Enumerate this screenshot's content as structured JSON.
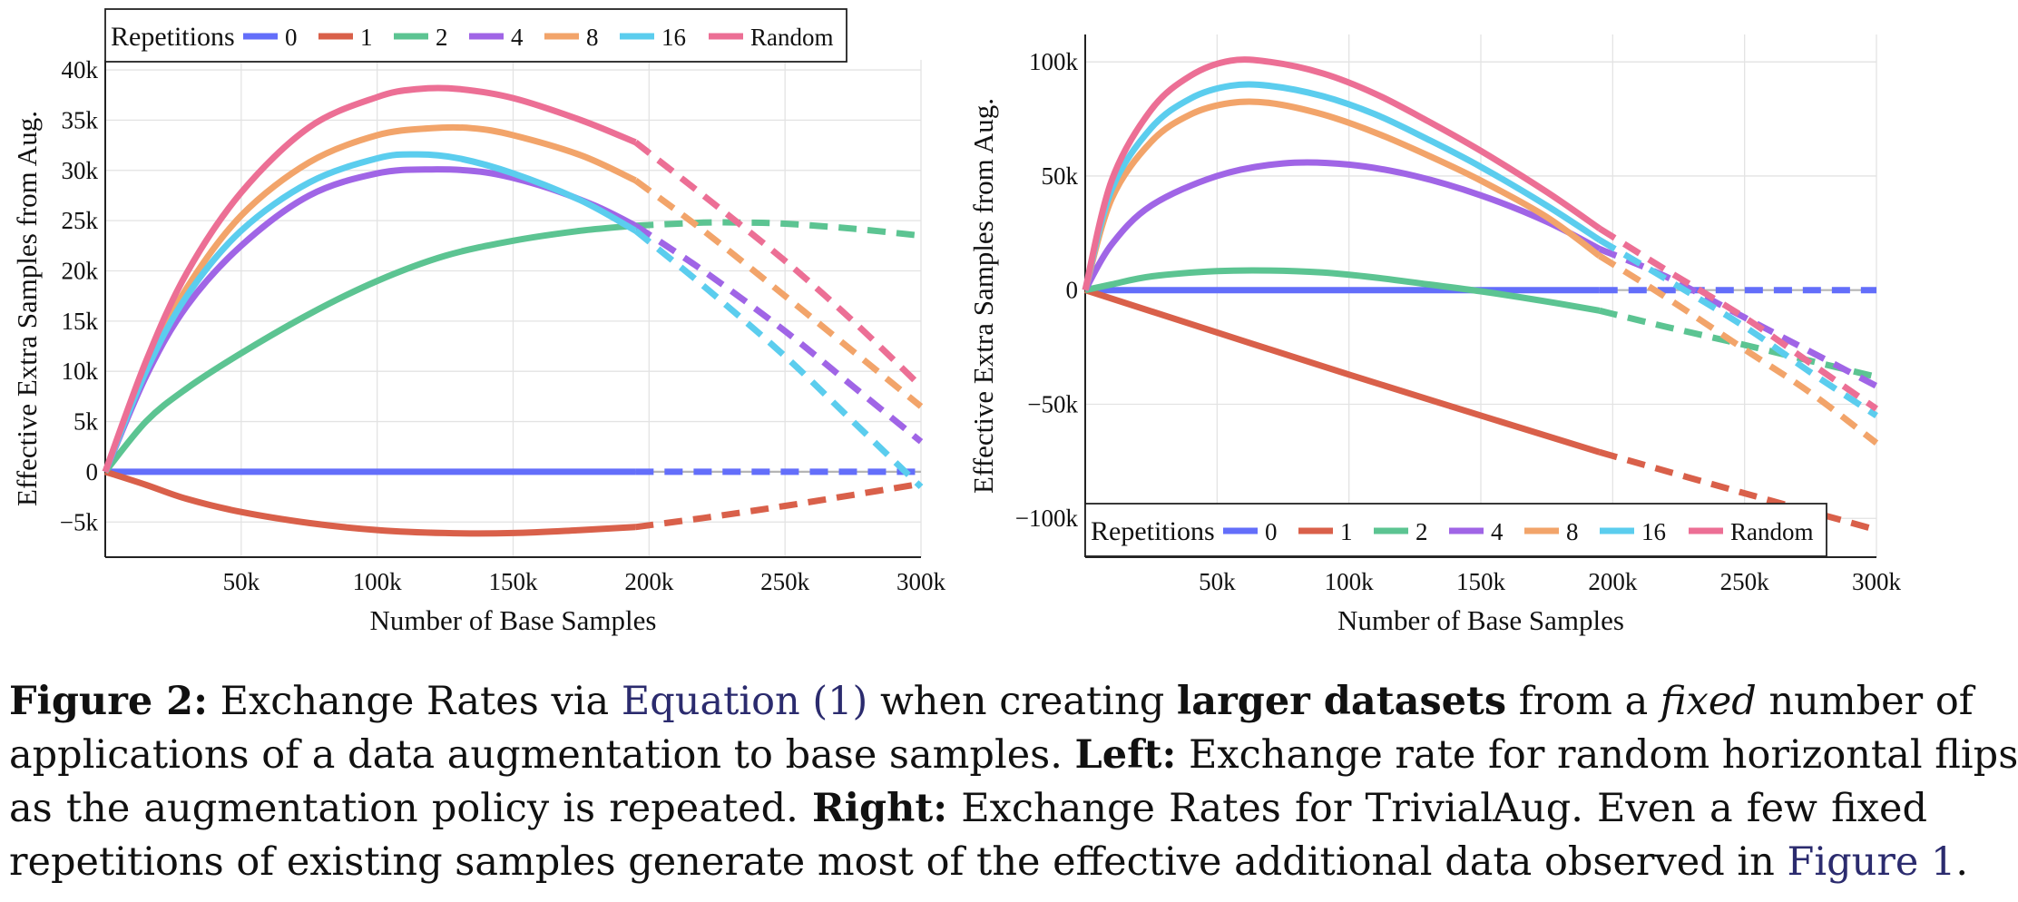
{
  "chart_data": [
    {
      "type": "line",
      "panel": "left",
      "xlabel": "Number of Base Samples",
      "ylabel": "Effective Extra Samples from Aug.",
      "xlim": [
        0,
        300000
      ],
      "ylim": [
        -8500,
        41000
      ],
      "xticks": [
        50000,
        100000,
        150000,
        200000,
        250000,
        300000
      ],
      "xtick_labels": [
        "50k",
        "100k",
        "150k",
        "200k",
        "250k",
        "300k"
      ],
      "yticks": [
        -5000,
        0,
        5000,
        10000,
        15000,
        20000,
        25000,
        30000,
        35000,
        40000
      ],
      "ytick_labels": [
        "−5k",
        "0",
        "5k",
        "10k",
        "15k",
        "20k",
        "25k",
        "30k",
        "35k",
        "40k"
      ],
      "grid": true,
      "solid_until_x": 195000,
      "legend": {
        "title": "Repetitions",
        "placement": "top-left"
      },
      "series": [
        {
          "name": "0",
          "color": "#636efa",
          "x": [
            0,
            100000,
            195000,
            300000
          ],
          "y": [
            0,
            0,
            0,
            0
          ]
        },
        {
          "name": "1",
          "color": "#d9604a",
          "x": [
            0,
            15000,
            30000,
            50000,
            75000,
            100000,
            125000,
            150000,
            175000,
            195000,
            220000,
            250000,
            275000,
            300000
          ],
          "y": [
            0,
            -1300,
            -2700,
            -4000,
            -5100,
            -5800,
            -6100,
            -6100,
            -5800,
            -5500,
            -4600,
            -3400,
            -2300,
            -1200
          ]
        },
        {
          "name": "2",
          "color": "#5cc492",
          "x": [
            0,
            15000,
            30000,
            50000,
            75000,
            100000,
            125000,
            150000,
            175000,
            195000,
            220000,
            235000,
            250000,
            275000,
            300000
          ],
          "y": [
            0,
            5000,
            8300,
            11800,
            15700,
            19000,
            21500,
            23000,
            24000,
            24500,
            24800,
            24800,
            24700,
            24200,
            23500
          ]
        },
        {
          "name": "4",
          "color": "#a065e6",
          "x": [
            0,
            15000,
            30000,
            50000,
            75000,
            100000,
            120000,
            140000,
            160000,
            180000,
            195000,
            220000,
            250000,
            275000,
            300000
          ],
          "y": [
            0,
            9500,
            16500,
            22500,
            27500,
            29700,
            30100,
            29800,
            28500,
            26500,
            24500,
            20000,
            14000,
            8500,
            3000
          ]
        },
        {
          "name": "8",
          "color": "#f2a46a",
          "x": [
            0,
            15000,
            30000,
            50000,
            75000,
            100000,
            120000,
            135000,
            150000,
            175000,
            195000,
            220000,
            250000,
            275000,
            300000
          ],
          "y": [
            0,
            10500,
            18300,
            25500,
            30800,
            33500,
            34200,
            34200,
            33500,
            31500,
            29000,
            24000,
            17500,
            12000,
            6500
          ]
        },
        {
          "name": "16",
          "color": "#5bcdee",
          "x": [
            0,
            15000,
            30000,
            50000,
            75000,
            100000,
            115000,
            130000,
            150000,
            175000,
            195000,
            220000,
            250000,
            275000,
            300000
          ],
          "y": [
            0,
            10000,
            17500,
            24000,
            28800,
            31200,
            31600,
            31200,
            29700,
            27000,
            24000,
            18500,
            11500,
            5000,
            -1500
          ]
        },
        {
          "name": "Random",
          "color": "#ec6f95",
          "x": [
            0,
            15000,
            30000,
            50000,
            75000,
            100000,
            115000,
            130000,
            150000,
            175000,
            195000,
            220000,
            250000,
            275000,
            300000
          ],
          "y": [
            0,
            11000,
            19800,
            27800,
            34300,
            37300,
            38100,
            38100,
            37200,
            35000,
            32800,
            27500,
            21000,
            15000,
            8500
          ]
        }
      ]
    },
    {
      "type": "line",
      "panel": "right",
      "xlabel": "Number of Base Samples",
      "ylabel": "Effective Extra Samples from Aug.",
      "xlim": [
        0,
        300000
      ],
      "ylim": [
        -117000,
        112000
      ],
      "xticks": [
        50000,
        100000,
        150000,
        200000,
        250000,
        300000
      ],
      "xtick_labels": [
        "50k",
        "100k",
        "150k",
        "200k",
        "250k",
        "300k"
      ],
      "yticks": [
        -100000,
        -50000,
        0,
        50000,
        100000
      ],
      "ytick_labels": [
        "−100k",
        "−50k",
        "0",
        "50k",
        "100k"
      ],
      "grid": true,
      "solid_until_x": 195000,
      "legend": {
        "title": "Repetitions",
        "placement": "bottom-left"
      },
      "series": [
        {
          "name": "0",
          "color": "#636efa",
          "x": [
            0,
            100000,
            195000,
            300000
          ],
          "y": [
            0,
            0,
            0,
            0
          ]
        },
        {
          "name": "1",
          "color": "#d9604a",
          "x": [
            0,
            100000,
            195000,
            250000,
            300000
          ],
          "y": [
            0,
            -37000,
            -71000,
            -89000,
            -105000
          ]
        },
        {
          "name": "2",
          "color": "#5cc492",
          "x": [
            0,
            10000,
            25000,
            50000,
            70000,
            90000,
            110000,
            130000,
            150000,
            175000,
            195000,
            220000,
            250000,
            275000,
            300000
          ],
          "y": [
            0,
            2500,
            6000,
            8300,
            8600,
            7700,
            5500,
            2500,
            -500,
            -5000,
            -9000,
            -16000,
            -24000,
            -31000,
            -38000
          ]
        },
        {
          "name": "4",
          "color": "#a065e6",
          "x": [
            0,
            10000,
            25000,
            50000,
            75000,
            100000,
            125000,
            150000,
            175000,
            195000,
            220000,
            250000,
            275000,
            300000
          ],
          "y": [
            0,
            20000,
            37000,
            50000,
            55500,
            55000,
            50000,
            41500,
            30000,
            18000,
            6000,
            -12000,
            -27000,
            -42000
          ]
        },
        {
          "name": "8",
          "color": "#f2a46a",
          "x": [
            0,
            10000,
            25000,
            40000,
            55000,
            70000,
            90000,
            110000,
            130000,
            150000,
            175000,
            195000,
            220000,
            250000,
            275000,
            300000
          ],
          "y": [
            0,
            40000,
            65000,
            77000,
            82000,
            82000,
            77000,
            69000,
            59000,
            48000,
            32000,
            15000,
            -3000,
            -26000,
            -45000,
            -67000
          ]
        },
        {
          "name": "16",
          "color": "#5bcdee",
          "x": [
            0,
            10000,
            25000,
            40000,
            55000,
            70000,
            90000,
            110000,
            130000,
            150000,
            175000,
            195000,
            220000,
            250000,
            275000,
            300000
          ],
          "y": [
            0,
            44000,
            71000,
            84000,
            89500,
            89500,
            85000,
            77000,
            66000,
            54000,
            37000,
            22000,
            5000,
            -16000,
            -36000,
            -55000
          ]
        },
        {
          "name": "Random",
          "color": "#ec6f95",
          "x": [
            0,
            10000,
            25000,
            40000,
            55000,
            70000,
            90000,
            110000,
            130000,
            150000,
            175000,
            195000,
            220000,
            250000,
            275000,
            300000
          ],
          "y": [
            0,
            48000,
            79000,
            94000,
            100500,
            100000,
            95000,
            86000,
            74000,
            61000,
            43000,
            27000,
            9000,
            -12000,
            -32000,
            -52000
          ]
        }
      ]
    }
  ],
  "caption": {
    "label": "Figure 2:",
    "t1": " Exchange Rates via ",
    "ref1": "Equation (1)",
    "t2": " when creating ",
    "b1": "larger datasets",
    "t3": " from a ",
    "i1": "fixed",
    "t4": " number of",
    "line2a": "applications of a data augmentation to base samples. ",
    "b2": "Left:",
    "line2b": " Exchange rate for random horizontal flips",
    "line3a": "as the augmentation policy is repeated. ",
    "b3": "Right:",
    "line3b": " Exchange Rates for TrivialAug. Even a few fixed",
    "line4a": "repetitions of existing samples generate most of the effective additional data observed in ",
    "ref2": "Figure 1",
    "line4b": "."
  }
}
